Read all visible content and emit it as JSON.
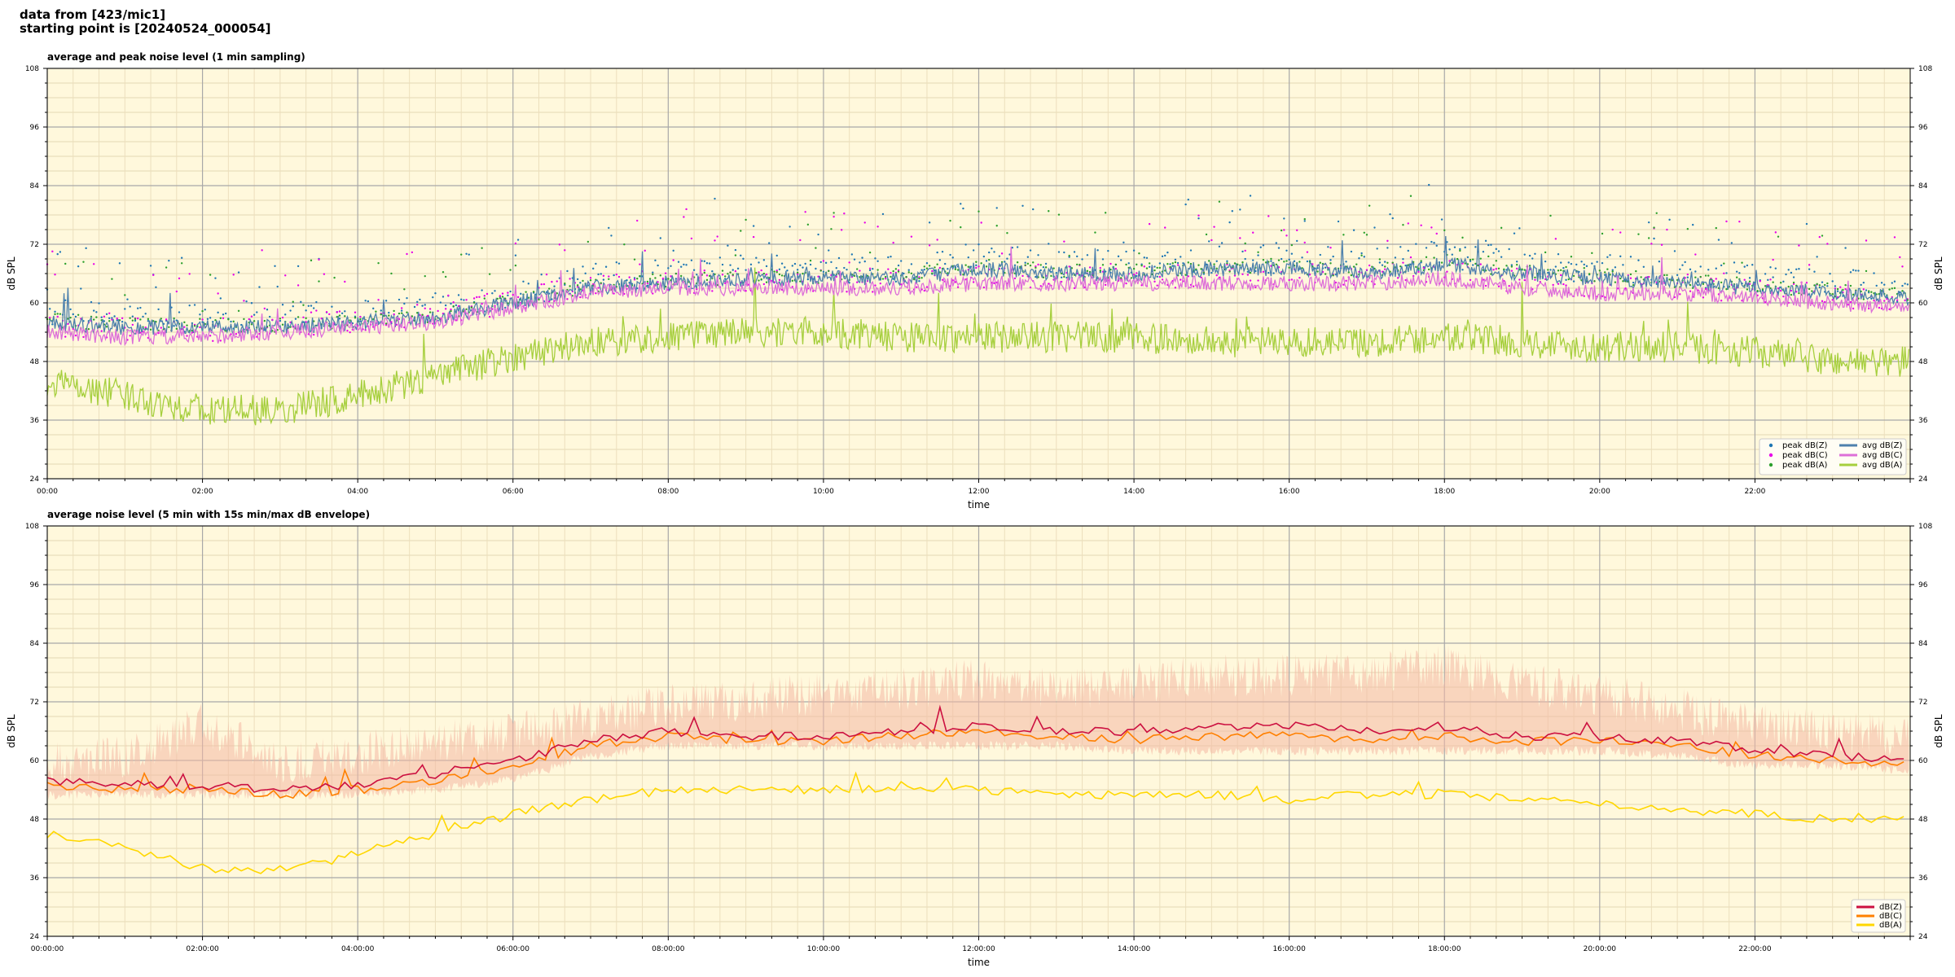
{
  "header": {
    "line1": "data from [423/mic1]",
    "line2": "starting point is [20240524_000054]"
  },
  "colors": {
    "background": "#fff8dc",
    "peak_z": "#1f77b4",
    "peak_c": "#e800e8",
    "peak_a": "#2ca02c",
    "avg_z": "#4e81ad",
    "avg_c": "#dd6fd8",
    "avg_a": "#a6cf3d",
    "db_z": "#cc1040",
    "db_c": "#ff8000",
    "db_a": "#ffd700",
    "envelope": "#f4b8a4"
  },
  "chart_data": [
    {
      "type": "line",
      "title": "average and peak noise level (1 min sampling)",
      "xlabel": "time",
      "ylabel": "dB SPL",
      "ylim": [
        24,
        108
      ],
      "yticks": [
        24,
        36,
        48,
        60,
        72,
        84,
        96,
        108
      ],
      "xlim_hours": [
        0,
        24
      ],
      "xticks": [
        "00:00",
        "02:00",
        "04:00",
        "06:00",
        "08:00",
        "10:00",
        "12:00",
        "14:00",
        "16:00",
        "18:00",
        "20:00",
        "22:00"
      ],
      "grid": true,
      "legend_position": "bottom-right",
      "legend": [
        {
          "label": "peak dB(Z)",
          "kind": "dot",
          "color_key": "peak_z"
        },
        {
          "label": "peak dB(C)",
          "kind": "dot",
          "color_key": "peak_c"
        },
        {
          "label": "peak dB(A)",
          "kind": "dot",
          "color_key": "peak_a"
        },
        {
          "label": "avg dB(Z)",
          "kind": "line",
          "color_key": "avg_z"
        },
        {
          "label": "avg dB(C)",
          "kind": "line",
          "color_key": "avg_c"
        },
        {
          "label": "avg dB(A)",
          "kind": "line",
          "color_key": "avg_a"
        }
      ],
      "series": [
        {
          "name": "avg dB(Z)",
          "color_key": "avg_z",
          "x_hours": [
            0,
            1,
            2,
            3,
            4,
            5,
            6,
            7,
            8,
            9,
            10,
            11,
            12,
            13,
            14,
            15,
            16,
            17,
            18,
            19,
            20,
            21,
            22,
            23,
            24
          ],
          "values": [
            56,
            55,
            55,
            55,
            56,
            57,
            60,
            63,
            64,
            65,
            65,
            65,
            67,
            66,
            66,
            67,
            67,
            66,
            68,
            66,
            65,
            64,
            63,
            62,
            61
          ]
        },
        {
          "name": "avg dB(C)",
          "color_key": "avg_c",
          "x_hours": [
            0,
            1,
            2,
            3,
            4,
            5,
            6,
            7,
            8,
            9,
            10,
            11,
            12,
            13,
            14,
            15,
            16,
            17,
            18,
            19,
            20,
            21,
            22,
            23,
            24
          ],
          "values": [
            54,
            53,
            53,
            54,
            55,
            56,
            59,
            62,
            63,
            63,
            63,
            63,
            64,
            64,
            64,
            64,
            64,
            64,
            65,
            63,
            62,
            62,
            61,
            60,
            59
          ]
        },
        {
          "name": "avg dB(A)",
          "color_key": "avg_a",
          "x_hours": [
            0,
            1,
            2,
            3,
            4,
            5,
            6,
            7,
            8,
            9,
            10,
            11,
            12,
            13,
            14,
            15,
            16,
            17,
            18,
            19,
            20,
            21,
            22,
            23,
            24
          ],
          "values": [
            44,
            41,
            38,
            38,
            41,
            45,
            49,
            52,
            53,
            54,
            54,
            53,
            53,
            53,
            53,
            52,
            52,
            52,
            53,
            52,
            51,
            51,
            50,
            48,
            48
          ]
        },
        {
          "name": "peak dB(Z)",
          "color_key": "peak_z",
          "kind": "scatter",
          "offset_db": 6
        },
        {
          "name": "peak dB(C)",
          "color_key": "peak_c",
          "kind": "scatter",
          "offset_db": 5
        },
        {
          "name": "peak dB(A)",
          "color_key": "peak_a",
          "kind": "scatter",
          "offset_db": 3
        }
      ]
    },
    {
      "type": "line",
      "title": "average noise level (5 min with 15s min/max dB envelope)",
      "xlabel": "time",
      "ylabel": "dB SPL",
      "ylim": [
        24,
        108
      ],
      "yticks": [
        24,
        36,
        48,
        60,
        72,
        84,
        96,
        108
      ],
      "xlim_hours": [
        0,
        24
      ],
      "xticks": [
        "00:00:00",
        "02:00:00",
        "04:00:00",
        "06:00:00",
        "08:00:00",
        "10:00:00",
        "12:00:00",
        "14:00:00",
        "16:00:00",
        "18:00:00",
        "20:00:00",
        "22:00:00"
      ],
      "grid": true,
      "legend_position": "bottom-right",
      "legend": [
        {
          "label": "dB(Z)",
          "kind": "line",
          "color_key": "db_z"
        },
        {
          "label": "dB(C)",
          "kind": "line",
          "color_key": "db_c"
        },
        {
          "label": "dB(A)",
          "kind": "line",
          "color_key": "db_a"
        }
      ],
      "series": [
        {
          "name": "dB(Z)",
          "color_key": "db_z",
          "x_hours": [
            0,
            1,
            2,
            3,
            4,
            5,
            6,
            7,
            8,
            9,
            10,
            11,
            12,
            13,
            14,
            15,
            16,
            17,
            18,
            19,
            20,
            21,
            22,
            23,
            24
          ],
          "values": [
            56,
            55,
            55,
            54,
            55,
            57,
            60,
            64,
            66,
            65,
            65,
            66,
            67,
            66,
            66,
            67,
            67,
            66,
            67,
            65,
            65,
            64,
            62,
            61,
            60
          ]
        },
        {
          "name": "dB(C)",
          "color_key": "db_c",
          "x_hours": [
            0,
            1,
            2,
            3,
            4,
            5,
            6,
            7,
            8,
            9,
            10,
            11,
            12,
            13,
            14,
            15,
            16,
            17,
            18,
            19,
            20,
            21,
            22,
            23,
            24
          ],
          "values": [
            55,
            54,
            54,
            53,
            54,
            56,
            59,
            63,
            65,
            64,
            64,
            65,
            66,
            65,
            64,
            65,
            65,
            64,
            65,
            64,
            64,
            63,
            61,
            60,
            59
          ]
        },
        {
          "name": "dB(A)",
          "color_key": "db_a",
          "x_hours": [
            0,
            1,
            2,
            3,
            4,
            5,
            6,
            7,
            8,
            9,
            10,
            11,
            12,
            13,
            14,
            15,
            16,
            17,
            18,
            19,
            20,
            21,
            22,
            23,
            24
          ],
          "values": [
            45,
            42,
            38,
            37,
            41,
            45,
            49,
            52,
            54,
            54,
            54,
            54,
            54,
            53,
            53,
            53,
            52,
            53,
            53,
            52,
            51,
            50,
            49,
            48,
            48
          ]
        },
        {
          "name": "envelope",
          "color_key": "envelope",
          "kind": "band",
          "x_hours": [
            0,
            1,
            2,
            3,
            4,
            5,
            6,
            7,
            8,
            9,
            10,
            11,
            12,
            13,
            14,
            15,
            16,
            17,
            18,
            19,
            20,
            21,
            22,
            23,
            24
          ],
          "low": [
            52,
            52,
            52,
            52,
            52,
            53,
            55,
            60,
            62,
            62,
            62,
            62,
            62,
            62,
            61,
            61,
            61,
            61,
            61,
            61,
            61,
            60,
            58,
            58,
            57
          ],
          "high": [
            64,
            65,
            72,
            64,
            66,
            68,
            70,
            73,
            76,
            77,
            78,
            79,
            81,
            79,
            80,
            82,
            82,
            82,
            84,
            80,
            78,
            75,
            72,
            70,
            70
          ]
        }
      ]
    }
  ]
}
